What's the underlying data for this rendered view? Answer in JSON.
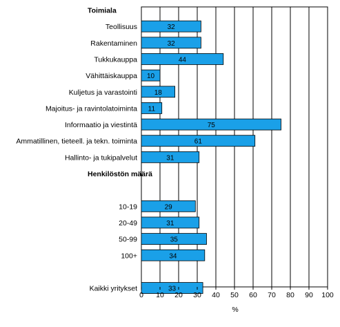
{
  "chart_data": {
    "type": "bar",
    "orientation": "horizontal",
    "xlabel": "%",
    "xlim": [
      0,
      100
    ],
    "xticks": [
      "0",
      "10",
      "20",
      "30",
      "40",
      "50",
      "60",
      "70",
      "80",
      "90",
      "100"
    ],
    "bar_color": "#1aa0e8",
    "grid": "vertical",
    "rows": [
      {
        "kind": "header",
        "label": "Toimiala"
      },
      {
        "kind": "bar",
        "label": "Teollisuus",
        "value": 32
      },
      {
        "kind": "bar",
        "label": "Rakentaminen",
        "value": 32
      },
      {
        "kind": "bar",
        "label": "Tukkukauppa",
        "value": 44
      },
      {
        "kind": "bar",
        "label": "Vähittäiskauppa",
        "value": 10
      },
      {
        "kind": "bar",
        "label": "Kuljetus ja varastointi",
        "value": 18
      },
      {
        "kind": "bar",
        "label": "Majoitus- ja ravintolatoiminta",
        "value": 11
      },
      {
        "kind": "bar",
        "label": "Informaatio ja viestintä",
        "value": 75
      },
      {
        "kind": "bar",
        "label": "Ammatillinen, tieteell. ja tekn. toiminta",
        "value": 61
      },
      {
        "kind": "bar",
        "label": "Hallinto- ja tukipalvelut",
        "value": 31
      },
      {
        "kind": "header",
        "label": "Henkilöstön määrä"
      },
      {
        "kind": "spacer"
      },
      {
        "kind": "bar",
        "label": "10-19",
        "value": 29
      },
      {
        "kind": "bar",
        "label": "20-49",
        "value": 31
      },
      {
        "kind": "bar",
        "label": "50-99",
        "value": 35
      },
      {
        "kind": "bar",
        "label": "100+",
        "value": 34
      },
      {
        "kind": "spacer"
      },
      {
        "kind": "bar",
        "label": "Kaikki yritykset",
        "value": 33
      }
    ]
  }
}
